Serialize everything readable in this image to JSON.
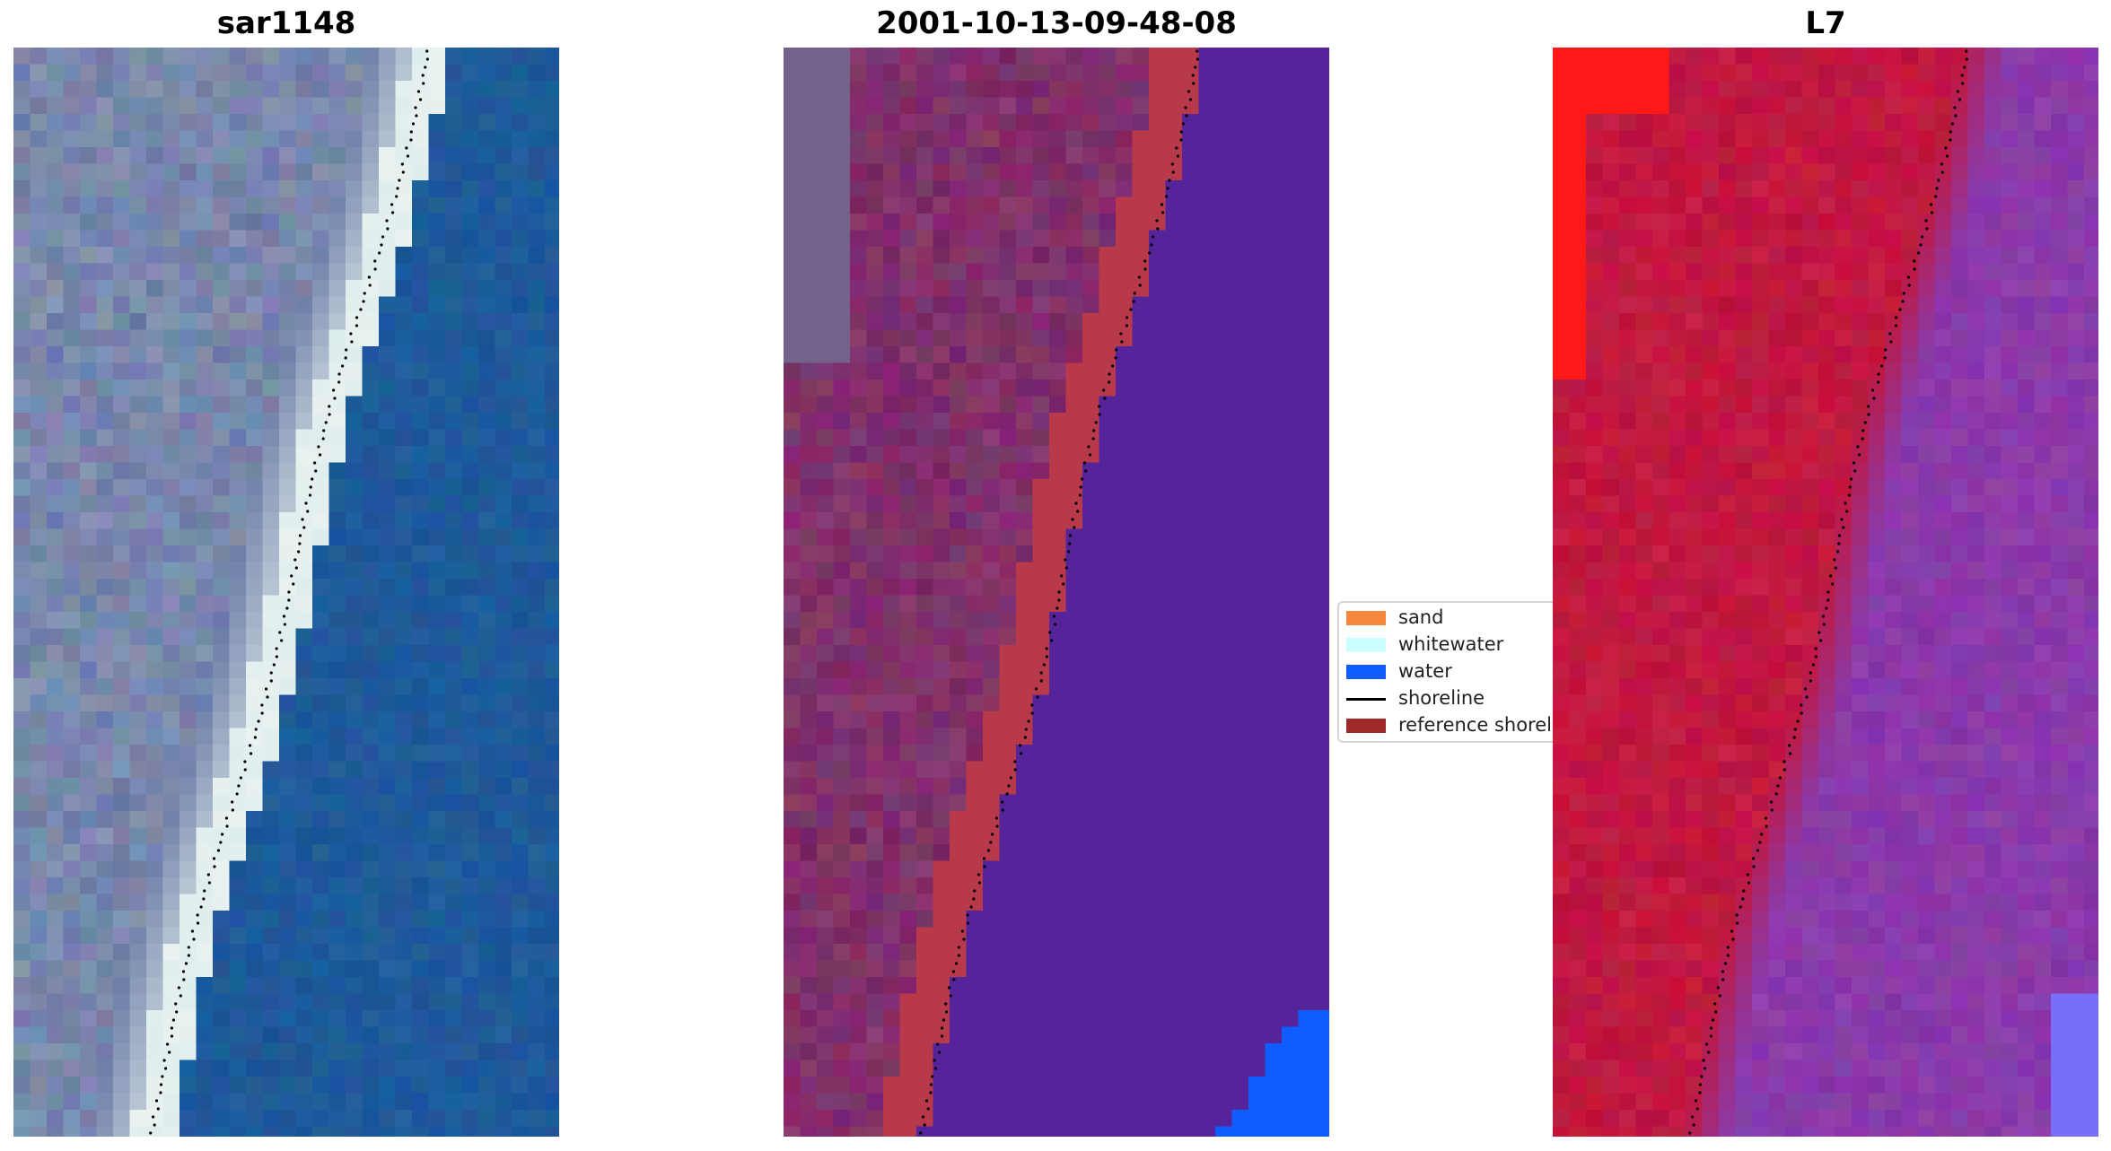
{
  "panels": [
    {
      "title": "sar1148"
    },
    {
      "title": "2001-10-13-09-48-08"
    },
    {
      "title": "L7"
    }
  ],
  "legend": {
    "items": [
      {
        "label": "sand",
        "color": "#F5883C"
      },
      {
        "label": "whitewater",
        "color": "#CCFFFF"
      },
      {
        "label": "water",
        "color": "#0F5CFF"
      },
      {
        "label": "shoreline",
        "color": "#000000",
        "kind": "line"
      },
      {
        "label": "reference shoreline",
        "color": "#9E2A2A"
      }
    ]
  },
  "colors": {
    "ocean_rgb": "#1E5A9A",
    "land_rgb": "#6E7FA8",
    "whitewater_rgb": "#E8F2F0",
    "class_land": "#80306A",
    "class_sand_band": "#B83A4A",
    "class_water": "#55249A",
    "class_water_bright": "#0F5CFF",
    "ndwi_land": "#C01840",
    "ndwi_water": "#8A3AAA",
    "ndwi_bright_red": "#FF1818"
  }
}
